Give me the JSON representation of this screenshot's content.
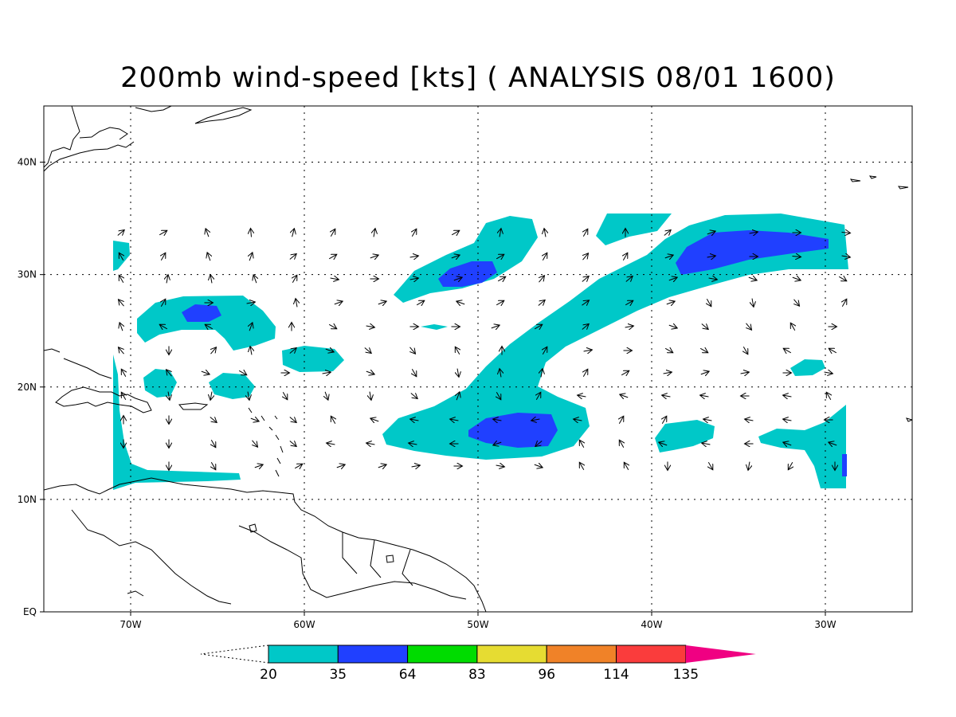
{
  "title": "200mb wind-speed [kts] ( ANALYSIS 08/01 1600)",
  "map": {
    "lon_range": [
      -75,
      -25
    ],
    "lat_range": [
      0,
      45
    ],
    "lon_ticks": [
      {
        "lon": -70,
        "label": "70W"
      },
      {
        "lon": -60,
        "label": "60W"
      },
      {
        "lon": -50,
        "label": "50W"
      },
      {
        "lon": -40,
        "label": "40W"
      },
      {
        "lon": -30,
        "label": "30W"
      }
    ],
    "lat_ticks": [
      {
        "lat": 0,
        "label": "EQ"
      },
      {
        "lat": 10,
        "label": "10N"
      },
      {
        "lat": 20,
        "label": "20N"
      },
      {
        "lat": 30,
        "label": "30N"
      },
      {
        "lat": 40,
        "label": "40N"
      }
    ],
    "gridlines": "dotted"
  },
  "colorbar": {
    "levels": [
      "20",
      "35",
      "64",
      "83",
      "96",
      "114",
      "135"
    ],
    "colors": [
      "#00c8c8",
      "#2040ff",
      "#00dc00",
      "#e6dc32",
      "#f08228",
      "#fa3c3c",
      "#f00082"
    ]
  },
  "colors": {
    "speed_20_35": "#00c8c8",
    "speed_35_64": "#2040ff"
  }
}
